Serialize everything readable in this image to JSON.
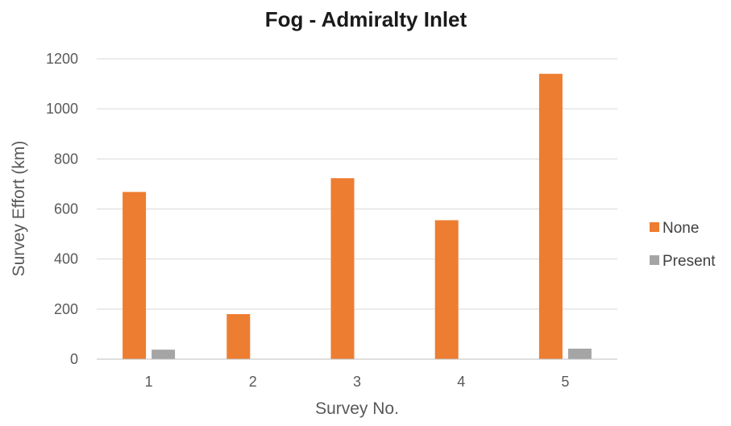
{
  "chart_data": {
    "type": "bar",
    "title": "Fog - Admiralty Inlet",
    "xlabel": "Survey No.",
    "ylabel": "Survey Effort (km)",
    "categories": [
      "1",
      "2",
      "3",
      "4",
      "5"
    ],
    "series": [
      {
        "name": "None",
        "color": "#ED7D31",
        "values": [
          668,
          180,
          723,
          555,
          1140
        ]
      },
      {
        "name": "Present",
        "color": "#A5A5A5",
        "values": [
          38,
          0,
          0,
          0,
          42
        ]
      }
    ],
    "ylim": [
      0,
      1200
    ],
    "yticks": [
      0,
      200,
      400,
      600,
      800,
      1000,
      1200
    ],
    "ytick_labels": [
      "0",
      "200",
      "400",
      "600",
      "800",
      "1000",
      "1200"
    ],
    "grid": true,
    "legend_position": "right"
  }
}
